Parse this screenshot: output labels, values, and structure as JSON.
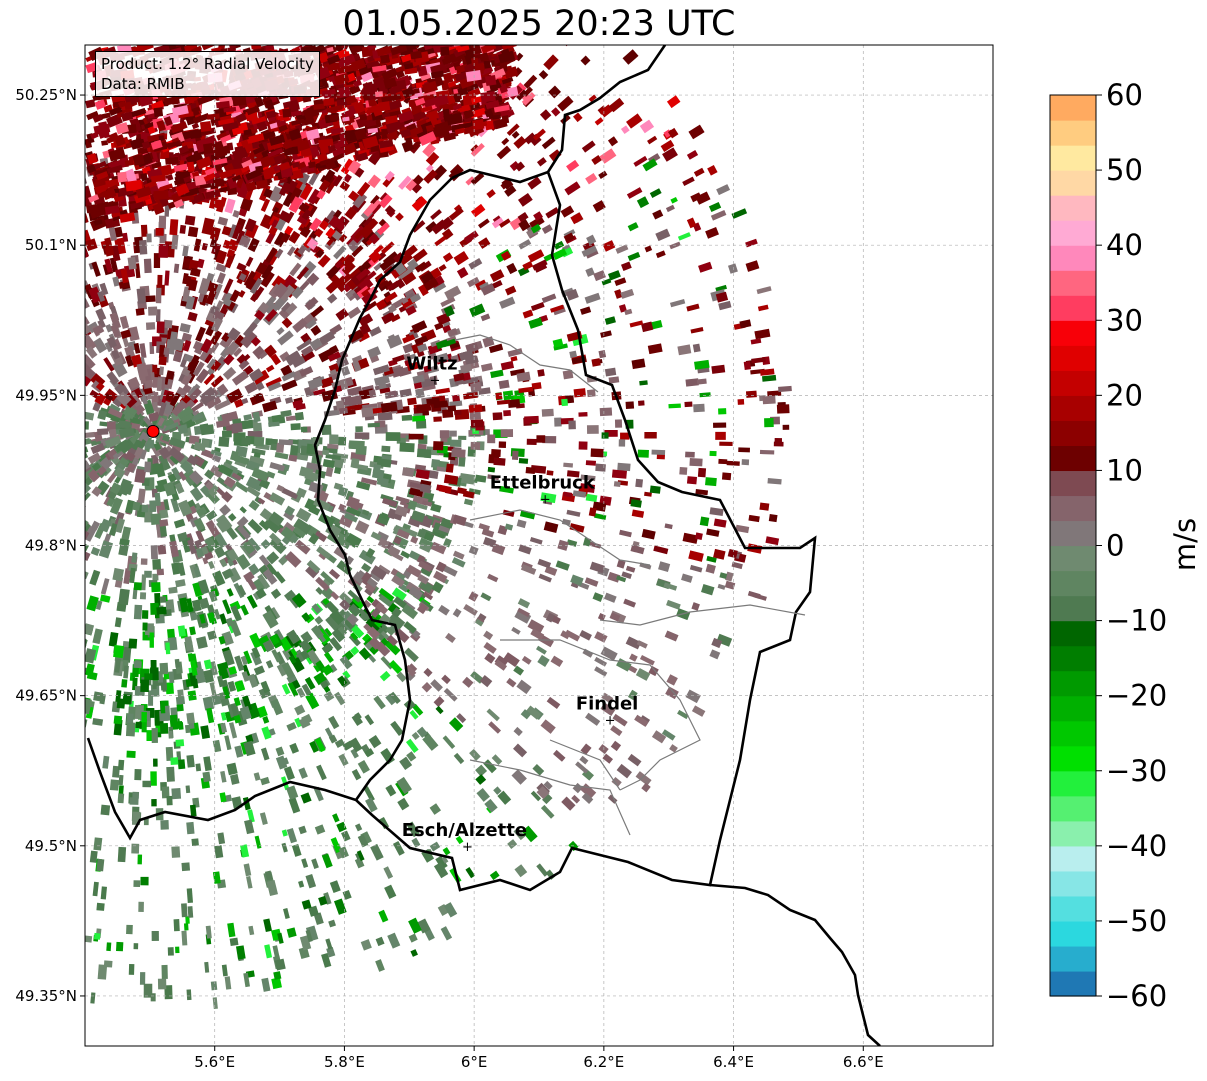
{
  "title": "01.05.2025 20:23 UTC",
  "info": {
    "product": "Product: 1.2° Radial Velocity",
    "data": "Data: RMIB"
  },
  "map": {
    "lon_range": [
      5.4,
      6.8
    ],
    "lat_range": [
      49.3,
      50.3
    ],
    "lon_ticks": [
      {
        "value": 5.6,
        "label": "5.6°E"
      },
      {
        "value": 5.8,
        "label": "5.8°E"
      },
      {
        "value": 6.0,
        "label": "6°E"
      },
      {
        "value": 6.2,
        "label": "6.2°E"
      },
      {
        "value": 6.4,
        "label": "6.4°E"
      },
      {
        "value": 6.6,
        "label": "6.6°E"
      }
    ],
    "lat_ticks": [
      {
        "value": 50.25,
        "label": "50.25°N"
      },
      {
        "value": 50.1,
        "label": "50.1°N"
      },
      {
        "value": 49.95,
        "label": "49.95°N"
      },
      {
        "value": 49.8,
        "label": "49.8°N"
      },
      {
        "value": 49.65,
        "label": "49.65°N"
      },
      {
        "value": 49.5,
        "label": "49.5°N"
      },
      {
        "value": 49.35,
        "label": "49.35°N"
      }
    ],
    "radar_site": {
      "lon": 5.505,
      "lat": 49.914
    },
    "cities": [
      {
        "name": "Wiltz",
        "lon": 5.935,
        "lat": 49.966
      },
      {
        "name": "Ettelbruck",
        "lon": 6.105,
        "lat": 49.847
      },
      {
        "name": "Findel",
        "lon": 6.205,
        "lat": 49.626
      },
      {
        "name": "Esch/Alzette",
        "lon": 5.985,
        "lat": 49.5
      }
    ]
  },
  "colorbar": {
    "label": "m/s",
    "range": [
      -60,
      60
    ],
    "ticks": [
      {
        "value": 60,
        "label": "60"
      },
      {
        "value": 50,
        "label": "50"
      },
      {
        "value": 40,
        "label": "40"
      },
      {
        "value": 30,
        "label": "30"
      },
      {
        "value": 20,
        "label": "20"
      },
      {
        "value": 10,
        "label": "10"
      },
      {
        "value": 0,
        "label": "0"
      },
      {
        "value": -10,
        "label": "−10"
      },
      {
        "value": -20,
        "label": "−20"
      },
      {
        "value": -30,
        "label": "−30"
      },
      {
        "value": -40,
        "label": "−40"
      },
      {
        "value": -50,
        "label": "−50"
      },
      {
        "value": -60,
        "label": "−60"
      }
    ],
    "colors": [
      "#1f78b4",
      "#27adce",
      "#2bd8df",
      "#54dfe0",
      "#87e6e6",
      "#b9eeee",
      "#8af0ad",
      "#55f071",
      "#22f03c",
      "#00e000",
      "#00c800",
      "#00b000",
      "#009a00",
      "#007e00",
      "#006600",
      "#4f7a51",
      "#5f8561",
      "#6f8a70",
      "#807779",
      "#85646b",
      "#7e4a52",
      "#6d0000",
      "#8c0000",
      "#a80000",
      "#c40000",
      "#e00000",
      "#f80008",
      "#ff3d60",
      "#ff6680",
      "#ff88bb",
      "#ffaad4",
      "#ffb8c0",
      "#ffd8a5",
      "#ffe9a0",
      "#ffcc80",
      "#ffaa60"
    ]
  }
}
